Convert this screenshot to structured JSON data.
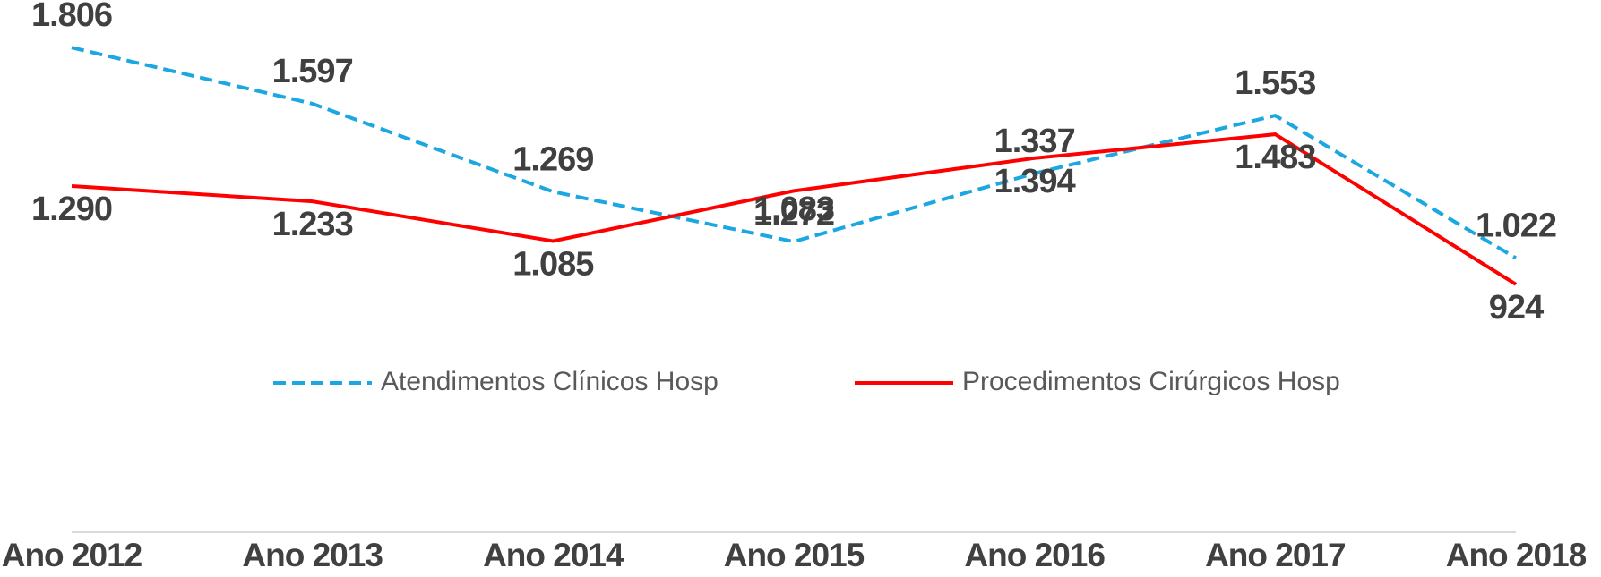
{
  "chart_data": {
    "type": "line",
    "categories": [
      "Ano 2012",
      "Ano 2013",
      "Ano 2014",
      "Ano 2015",
      "Ano 2016",
      "Ano 2017",
      "Ano 2018"
    ],
    "series": [
      {
        "name": "Atendimentos Clínicos Hosp",
        "color": "#1ba7e1",
        "dashed": true,
        "values": [
          1806,
          1597,
          1269,
          1083,
          1337,
          1553,
          1022
        ],
        "value_labels": [
          "1.806",
          "1.597",
          "1.269",
          "1.083",
          "1.337",
          "1.553",
          "1.022"
        ]
      },
      {
        "name": "Procedimentos Cirúrgicos Hosp",
        "color": "#ff0000",
        "dashed": false,
        "values": [
          1290,
          1233,
          1085,
          1272,
          1394,
          1483,
          924
        ],
        "value_labels": [
          "1.290",
          "1.233",
          "1.085",
          "1.272",
          "1.394",
          "1.483",
          "924"
        ]
      }
    ],
    "ylim": [
      0,
      2000
    ],
    "legend": "center"
  }
}
